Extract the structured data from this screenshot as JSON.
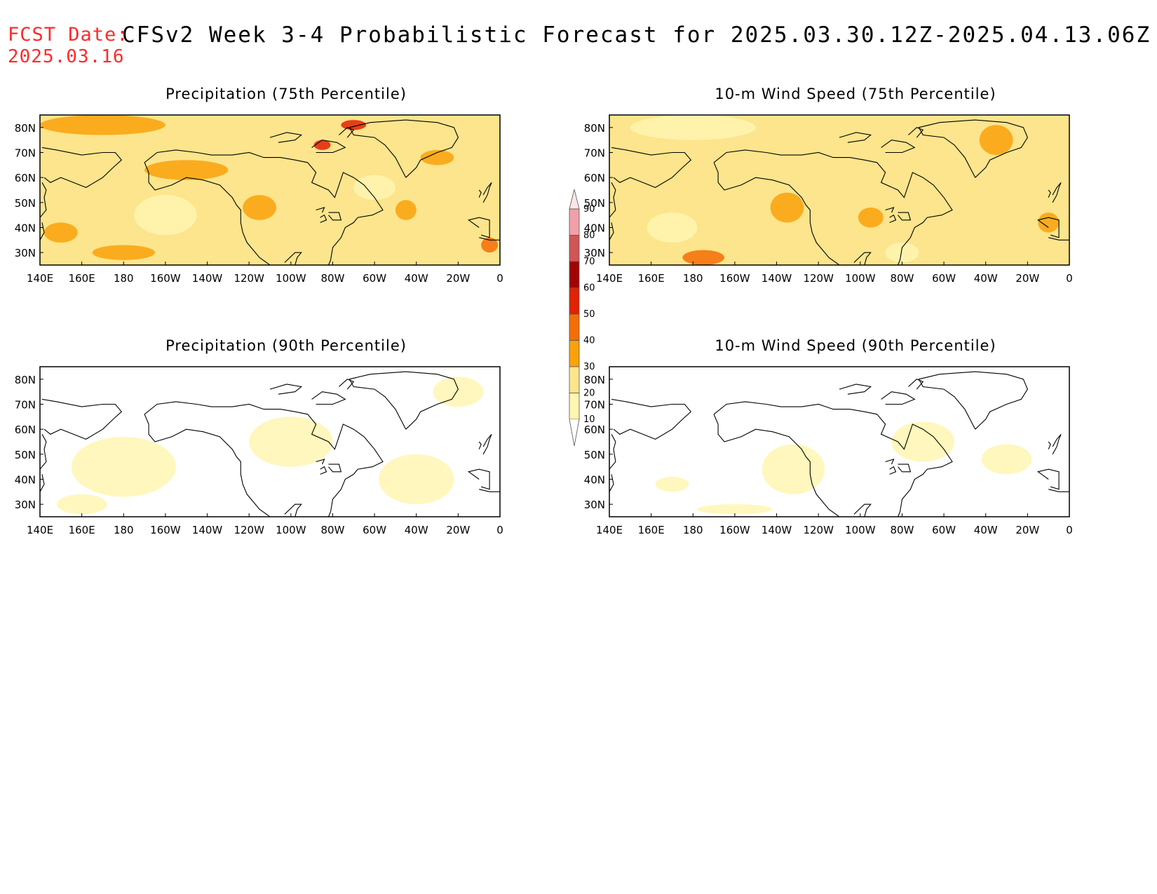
{
  "header": {
    "fcst_label": "FCST Date:",
    "fcst_date": "2025.03.16",
    "title": "CFSv2 Week 3-4 Probabilistic Forecast for 2025.03.30.12Z-2025.04.13.06Z"
  },
  "axes": {
    "lon_labels": [
      "140E",
      "160E",
      "180",
      "160W",
      "140W",
      "120W",
      "100W",
      "80W",
      "60W",
      "40W",
      "20W",
      "0"
    ],
    "lat_labels": [
      "80N",
      "70N",
      "60N",
      "50N",
      "40N",
      "30N"
    ]
  },
  "colorbar": {
    "levels": [
      "10",
      "20",
      "30",
      "40",
      "50",
      "60",
      "70",
      "80",
      "90"
    ],
    "colors": [
      "#fff6b2",
      "#fce58c",
      "#f9a20a",
      "#f46d05",
      "#e02205",
      "#a00505",
      "#d05555",
      "#f2a0a8",
      "#fde6e8"
    ]
  },
  "panels": [
    {
      "id": "p75",
      "title": "Precipitation (75th Percentile)",
      "base_color": "#fce58c",
      "blobs": [
        {
          "lon": 170,
          "lat": 81,
          "rx": 30,
          "ry": 4,
          "color": "#f9a20a"
        },
        {
          "lon": 210,
          "lat": 63,
          "rx": 20,
          "ry": 4,
          "color": "#f9a20a"
        },
        {
          "lon": 245,
          "lat": 48,
          "rx": 8,
          "ry": 5,
          "color": "#f9a20a"
        },
        {
          "lon": 275,
          "lat": 73,
          "rx": 4,
          "ry": 2,
          "color": "#e02205"
        },
        {
          "lon": 290,
          "lat": 81,
          "rx": 6,
          "ry": 2,
          "color": "#e02205"
        },
        {
          "lon": 180,
          "lat": 30,
          "rx": 15,
          "ry": 3,
          "color": "#f9a20a"
        },
        {
          "lon": 315,
          "lat": 47,
          "rx": 5,
          "ry": 4,
          "color": "#f9a20a"
        },
        {
          "lon": 150,
          "lat": 38,
          "rx": 8,
          "ry": 4,
          "color": "#f9a20a"
        },
        {
          "lon": 330,
          "lat": 68,
          "rx": 8,
          "ry": 3,
          "color": "#f9a20a"
        },
        {
          "lon": 355,
          "lat": 33,
          "rx": 4,
          "ry": 3,
          "color": "#f46d05"
        },
        {
          "lon": 200,
          "lat": 45,
          "rx": 15,
          "ry": 8,
          "color": "#fff6b2"
        },
        {
          "lon": 300,
          "lat": 56,
          "rx": 10,
          "ry": 5,
          "color": "#fff6b2"
        }
      ]
    },
    {
      "id": "w75",
      "title": "10-m Wind Speed (75th Percentile)",
      "base_color": "#fce58c",
      "blobs": [
        {
          "lon": 180,
          "lat": 80,
          "rx": 30,
          "ry": 5,
          "color": "#fff6b2"
        },
        {
          "lon": 225,
          "lat": 48,
          "rx": 8,
          "ry": 6,
          "color": "#f9a20a"
        },
        {
          "lon": 185,
          "lat": 28,
          "rx": 10,
          "ry": 3,
          "color": "#f46d05"
        },
        {
          "lon": 325,
          "lat": 75,
          "rx": 8,
          "ry": 6,
          "color": "#f9a20a"
        },
        {
          "lon": 265,
          "lat": 44,
          "rx": 6,
          "ry": 4,
          "color": "#f9a20a"
        },
        {
          "lon": 170,
          "lat": 40,
          "rx": 12,
          "ry": 6,
          "color": "#fff6b2"
        },
        {
          "lon": 350,
          "lat": 42,
          "rx": 5,
          "ry": 4,
          "color": "#f9a20a"
        },
        {
          "lon": 280,
          "lat": 30,
          "rx": 8,
          "ry": 4,
          "color": "#fff6b2"
        }
      ]
    },
    {
      "id": "p90",
      "title": "Precipitation (90th Percentile)",
      "base_color": "#ffffff",
      "blobs": [
        {
          "lon": 180,
          "lat": 45,
          "rx": 25,
          "ry": 12,
          "color": "#fff6b2"
        },
        {
          "lon": 260,
          "lat": 55,
          "rx": 20,
          "ry": 10,
          "color": "#fff6b2"
        },
        {
          "lon": 320,
          "lat": 40,
          "rx": 18,
          "ry": 10,
          "color": "#fff6b2"
        },
        {
          "lon": 340,
          "lat": 75,
          "rx": 12,
          "ry": 6,
          "color": "#fff6b2"
        },
        {
          "lon": 160,
          "lat": 30,
          "rx": 12,
          "ry": 4,
          "color": "#fff6b2"
        }
      ]
    },
    {
      "id": "w90",
      "title": "10-m Wind Speed (90th Percentile)",
      "base_color": "#ffffff",
      "blobs": [
        {
          "lon": 228,
          "lat": 44,
          "rx": 15,
          "ry": 10,
          "color": "#fff6b2"
        },
        {
          "lon": 290,
          "lat": 55,
          "rx": 15,
          "ry": 8,
          "color": "#fff6b2"
        },
        {
          "lon": 330,
          "lat": 48,
          "rx": 12,
          "ry": 6,
          "color": "#fff6b2"
        },
        {
          "lon": 200,
          "lat": 28,
          "rx": 18,
          "ry": 2,
          "color": "#fff6b2"
        },
        {
          "lon": 170,
          "lat": 38,
          "rx": 8,
          "ry": 3,
          "color": "#fff6b2"
        }
      ]
    }
  ]
}
